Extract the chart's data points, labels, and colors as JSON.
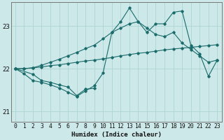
{
  "xlabel": "Humidex (Indice chaleur)",
  "bg_color": "#cce8e8",
  "line_color": "#1a6b6b",
  "grid_color": "#aed4d4",
  "xlim": [
    -0.5,
    23.5
  ],
  "ylim": [
    20.75,
    23.55
  ],
  "yticks": [
    21,
    22,
    23
  ],
  "xticks": [
    0,
    1,
    2,
    3,
    4,
    5,
    6,
    7,
    8,
    9,
    10,
    11,
    12,
    13,
    14,
    15,
    16,
    17,
    18,
    19,
    20,
    21,
    22,
    23
  ],
  "line1_x": [
    0,
    1,
    2,
    3,
    4,
    5,
    6,
    7,
    8,
    9,
    10,
    11,
    12,
    13,
    14,
    15,
    16,
    17,
    18,
    19,
    20,
    21,
    22,
    23
  ],
  "line1_y": [
    22.0,
    22.0,
    22.02,
    22.04,
    22.07,
    22.09,
    22.12,
    22.15,
    22.18,
    22.2,
    22.23,
    22.26,
    22.3,
    22.33,
    22.36,
    22.38,
    22.41,
    22.44,
    22.46,
    22.48,
    22.5,
    22.52,
    22.54,
    22.56
  ],
  "line2_x": [
    0,
    1,
    2,
    3,
    4,
    5,
    6,
    7,
    8,
    9,
    10,
    11,
    12,
    13,
    14,
    15,
    16,
    17,
    18,
    19,
    20,
    21,
    22,
    23
  ],
  "line2_y": [
    22.0,
    22.0,
    22.02,
    22.08,
    22.15,
    22.22,
    22.3,
    22.38,
    22.47,
    22.55,
    22.7,
    22.85,
    22.95,
    23.05,
    23.1,
    22.95,
    22.8,
    22.75,
    22.85,
    22.6,
    22.45,
    22.3,
    22.15,
    22.2
  ],
  "line3_x": [
    0,
    1,
    2,
    3,
    4,
    5,
    6,
    7,
    8,
    9,
    10,
    11,
    12,
    13,
    14,
    15,
    16,
    17,
    18,
    19,
    20,
    21,
    22,
    23
  ],
  "line3_y": [
    22.0,
    21.88,
    21.72,
    21.68,
    21.62,
    21.55,
    21.45,
    21.35,
    21.48,
    21.6,
    21.9,
    22.85,
    23.1,
    23.42,
    23.1,
    22.85,
    23.05,
    23.05,
    23.32,
    23.35,
    22.55,
    22.35,
    21.82,
    22.2
  ],
  "line4_x": [
    0,
    2,
    3,
    4,
    5,
    6,
    7,
    8,
    9
  ],
  "line4_y": [
    22.0,
    21.87,
    21.72,
    21.68,
    21.62,
    21.57,
    21.37,
    21.52,
    21.54
  ]
}
